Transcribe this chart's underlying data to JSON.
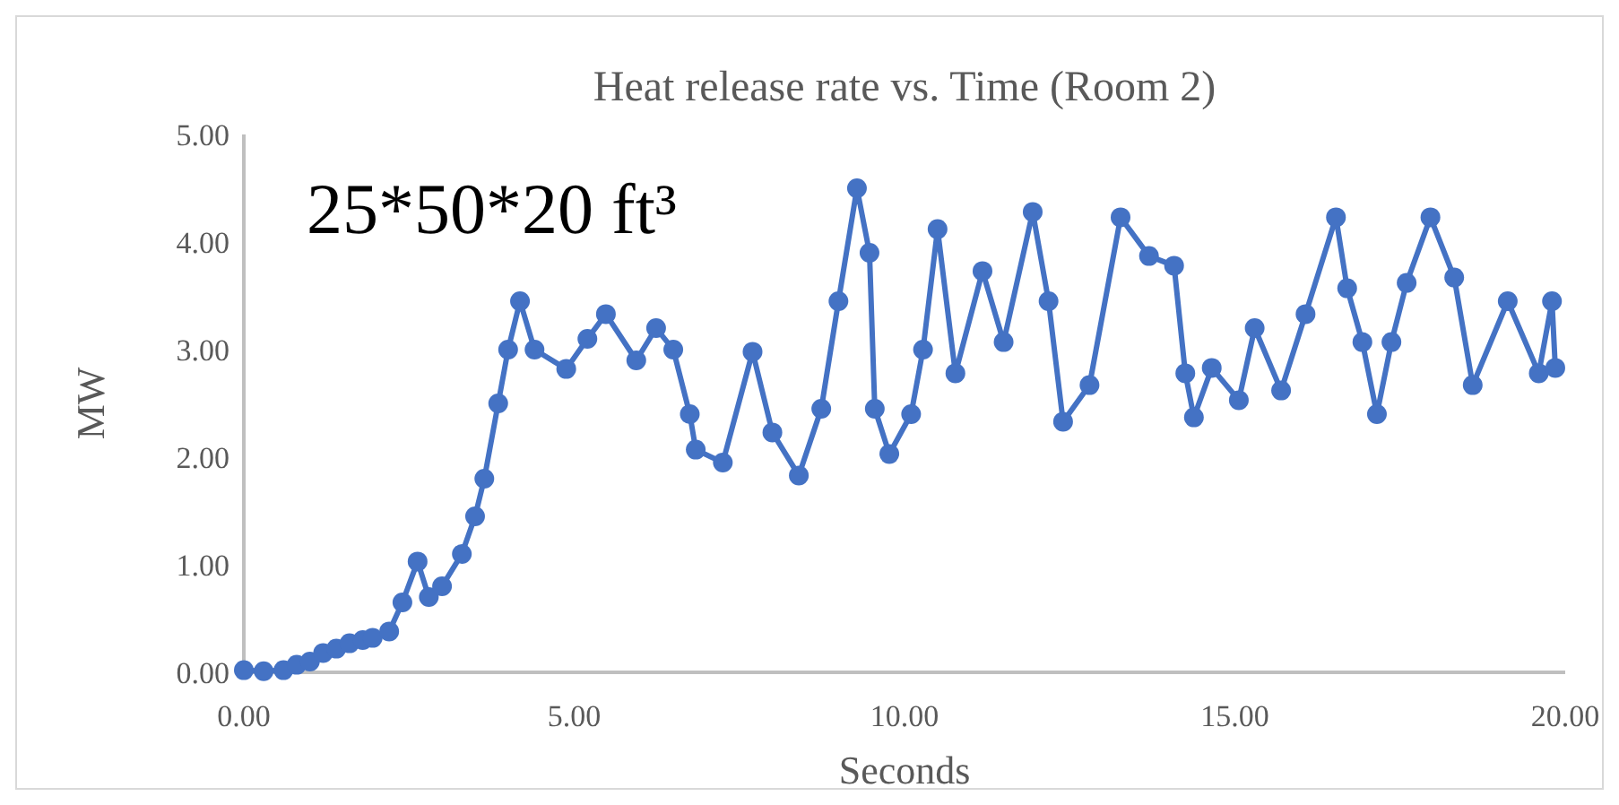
{
  "chart_data": {
    "type": "line",
    "title": "Heat release rate vs. Time (Room 2)",
    "xlabel": "Seconds",
    "ylabel": "MW",
    "annotations": [
      "25*50*20 ft³"
    ],
    "marker": "circle",
    "grid": false,
    "xlim": [
      0,
      20
    ],
    "xticks": [
      {
        "value": 0,
        "label": "0.00"
      },
      {
        "value": 5,
        "label": "5.00"
      },
      {
        "value": 10,
        "label": "10.00"
      },
      {
        "value": 15,
        "label": "15.00"
      },
      {
        "value": 20,
        "label": "20.00"
      }
    ],
    "ylim": [
      0,
      5
    ],
    "yticks": [
      {
        "value": 0,
        "label": "0.00"
      },
      {
        "value": 1,
        "label": "1.00"
      },
      {
        "value": 2,
        "label": "2.00"
      },
      {
        "value": 3,
        "label": "3.00"
      },
      {
        "value": 4,
        "label": "4.00"
      },
      {
        "value": 5,
        "label": "5.00"
      }
    ],
    "series": [
      {
        "color": "#4472c4",
        "x": [
          0,
          0.3,
          0.6,
          0.8,
          1.0,
          1.2,
          1.4,
          1.6,
          1.8,
          1.95,
          2.2,
          2.4,
          2.63,
          2.8,
          3.0,
          3.3,
          3.5,
          3.64,
          3.85,
          4.0,
          4.18,
          4.4,
          4.88,
          5.2,
          5.48,
          5.94,
          6.24,
          6.5,
          6.75,
          6.84,
          7.25,
          7.7,
          8.0,
          8.4,
          8.74,
          9.0,
          9.28,
          9.47,
          9.55,
          9.77,
          10.1,
          10.28,
          10.5,
          10.77,
          11.18,
          11.5,
          11.94,
          12.18,
          12.4,
          12.8,
          13.27,
          13.7,
          14.08,
          14.25,
          14.38,
          14.65,
          15.06,
          15.3,
          15.7,
          16.07,
          16.53,
          16.7,
          16.93,
          17.15,
          17.37,
          17.6,
          17.96,
          18.32,
          18.6,
          19.13,
          19.6,
          19.8,
          19.85
        ],
        "values": [
          0.02,
          0.01,
          0.02,
          0.07,
          0.1,
          0.18,
          0.22,
          0.27,
          0.3,
          0.32,
          0.38,
          0.65,
          1.03,
          0.7,
          0.8,
          1.1,
          1.45,
          1.8,
          2.5,
          3.0,
          3.45,
          3.0,
          2.82,
          3.1,
          3.33,
          2.9,
          3.2,
          3.0,
          2.4,
          2.07,
          1.95,
          2.98,
          2.23,
          1.83,
          2.45,
          3.45,
          4.5,
          3.9,
          2.45,
          2.03,
          2.4,
          3.0,
          4.12,
          2.78,
          3.73,
          3.07,
          4.28,
          3.45,
          2.33,
          2.67,
          4.23,
          3.87,
          3.78,
          2.78,
          2.37,
          2.83,
          2.53,
          3.2,
          2.62,
          3.33,
          4.23,
          3.57,
          3.07,
          2.4,
          3.07,
          3.62,
          4.23,
          3.67,
          2.67,
          3.45,
          2.78,
          3.45,
          2.83
        ]
      }
    ]
  }
}
